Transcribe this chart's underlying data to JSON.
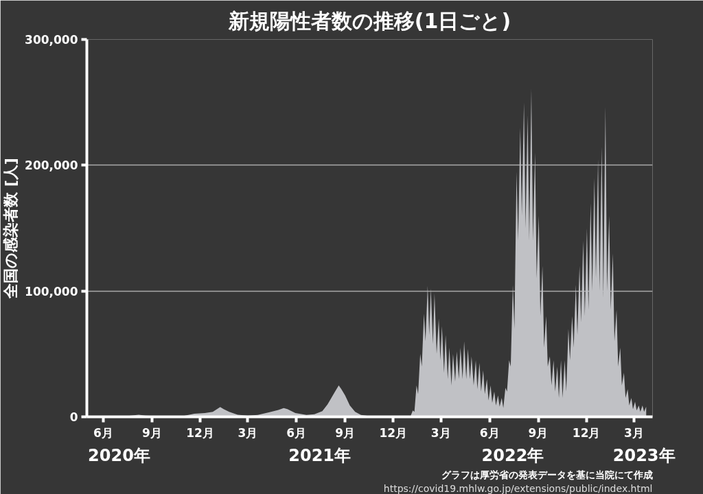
{
  "chart_data": {
    "type": "area",
    "title": "新規陽性者数の推移(1日ごと)",
    "ylabel": "全国の感染者数 [人]",
    "annotations": [
      "グラフは厚労省の発表データを基に当院にて作成",
      "https://covid19.mhlw.go.jp/extensions/public/index.html"
    ],
    "xlim": [
      "2020-05-01",
      "2023-04-05"
    ],
    "xticks": [
      {
        "value": "2020-06-01",
        "label": "6月"
      },
      {
        "value": "2020-09-01",
        "label": "9月"
      },
      {
        "value": "2020-12-01",
        "label": "12月"
      },
      {
        "value": "2021-03-01",
        "label": "3月"
      },
      {
        "value": "2021-06-01",
        "label": "6月"
      },
      {
        "value": "2021-09-01",
        "label": "9月"
      },
      {
        "value": "2021-12-01",
        "label": "12月"
      },
      {
        "value": "2022-03-01",
        "label": "3月"
      },
      {
        "value": "2022-06-01",
        "label": "6月"
      },
      {
        "value": "2022-09-01",
        "label": "9月"
      },
      {
        "value": "2022-12-01",
        "label": "12月"
      },
      {
        "value": "2023-03-01",
        "label": "3月"
      }
    ],
    "x2lim": [
      "2020-05-01",
      "2023-04-05"
    ],
    "x2ticks": [
      {
        "value": "2020-07-01",
        "label": "2020年"
      },
      {
        "value": "2021-07-15",
        "label": "2021年"
      },
      {
        "value": "2022-07-15",
        "label": "2022年"
      },
      {
        "value": "2023-03-20",
        "label": "2023年"
      }
    ],
    "ylim": [
      0,
      300000
    ],
    "yticks": [
      {
        "value": 0,
        "label": "0"
      },
      {
        "value": 100000,
        "label": "100,000"
      },
      {
        "value": 200000,
        "label": "200,000"
      },
      {
        "value": 300000,
        "label": "300,000"
      }
    ],
    "grid": "y",
    "series": [
      {
        "color": "#c0c1c5",
        "x": [
          "2020-05-05",
          "2020-06-01",
          "2020-07-01",
          "2020-07-20",
          "2020-08-07",
          "2020-08-20",
          "2020-09-15",
          "2020-10-15",
          "2020-11-01",
          "2020-11-20",
          "2020-12-10",
          "2020-12-25",
          "2021-01-08",
          "2021-01-15",
          "2021-01-25",
          "2021-02-10",
          "2021-03-01",
          "2021-03-20",
          "2021-04-10",
          "2021-04-28",
          "2021-05-08",
          "2021-05-15",
          "2021-05-30",
          "2021-06-20",
          "2021-07-05",
          "2021-07-20",
          "2021-07-30",
          "2021-08-06",
          "2021-08-13",
          "2021-08-20",
          "2021-08-25",
          "2021-09-01",
          "2021-09-10",
          "2021-09-20",
          "2021-10-01",
          "2021-10-20",
          "2021-11-15",
          "2021-12-15",
          "2021-12-28",
          "2022-01-03",
          "2022-01-07",
          "2022-01-10",
          "2022-01-14",
          "2022-01-17",
          "2022-01-21",
          "2022-01-24",
          "2022-01-28",
          "2022-01-31",
          "2022-02-04",
          "2022-02-07",
          "2022-02-10",
          "2022-02-14",
          "2022-02-17",
          "2022-02-21",
          "2022-02-25",
          "2022-02-28",
          "2022-03-03",
          "2022-03-07",
          "2022-03-10",
          "2022-03-14",
          "2022-03-17",
          "2022-03-21",
          "2022-03-24",
          "2022-03-28",
          "2022-03-31",
          "2022-04-04",
          "2022-04-07",
          "2022-04-11",
          "2022-04-14",
          "2022-04-18",
          "2022-04-21",
          "2022-04-25",
          "2022-04-28",
          "2022-05-02",
          "2022-05-06",
          "2022-05-09",
          "2022-05-13",
          "2022-05-16",
          "2022-05-20",
          "2022-05-23",
          "2022-05-27",
          "2022-05-30",
          "2022-06-03",
          "2022-06-06",
          "2022-06-10",
          "2022-06-13",
          "2022-06-17",
          "2022-06-20",
          "2022-06-24",
          "2022-06-27",
          "2022-07-01",
          "2022-07-04",
          "2022-07-08",
          "2022-07-11",
          "2022-07-15",
          "2022-07-18",
          "2022-07-22",
          "2022-07-25",
          "2022-07-29",
          "2022-08-01",
          "2022-08-05",
          "2022-08-08",
          "2022-08-12",
          "2022-08-15",
          "2022-08-19",
          "2022-08-22",
          "2022-08-26",
          "2022-08-29",
          "2022-09-02",
          "2022-09-05",
          "2022-09-09",
          "2022-09-12",
          "2022-09-16",
          "2022-09-19",
          "2022-09-23",
          "2022-09-26",
          "2022-09-30",
          "2022-10-03",
          "2022-10-07",
          "2022-10-10",
          "2022-10-14",
          "2022-10-17",
          "2022-10-21",
          "2022-10-24",
          "2022-10-28",
          "2022-10-31",
          "2022-11-04",
          "2022-11-07",
          "2022-11-11",
          "2022-11-14",
          "2022-11-18",
          "2022-11-21",
          "2022-11-25",
          "2022-11-28",
          "2022-12-02",
          "2022-12-05",
          "2022-12-09",
          "2022-12-12",
          "2022-12-16",
          "2022-12-19",
          "2022-12-23",
          "2022-12-26",
          "2022-12-30",
          "2023-01-02",
          "2023-01-06",
          "2023-01-09",
          "2023-01-13",
          "2023-01-16",
          "2023-01-20",
          "2023-01-23",
          "2023-01-27",
          "2023-01-30",
          "2023-02-03",
          "2023-02-06",
          "2023-02-10",
          "2023-02-13",
          "2023-02-17",
          "2023-02-20",
          "2023-02-24",
          "2023-02-27",
          "2023-03-03",
          "2023-03-06",
          "2023-03-10",
          "2023-03-13",
          "2023-03-17",
          "2023-03-20",
          "2023-03-24"
        ],
        "values": [
          100,
          0,
          300,
          800,
          1600,
          1000,
          500,
          600,
          800,
          2400,
          3000,
          4000,
          7800,
          6000,
          4000,
          1700,
          1000,
          1500,
          3500,
          5500,
          7000,
          6200,
          3000,
          1500,
          2000,
          4500,
          10000,
          15000,
          20000,
          25000,
          22000,
          17000,
          9000,
          4000,
          1500,
          400,
          200,
          200,
          500,
          800,
          5000,
          4000,
          25000,
          18000,
          50000,
          40000,
          82000,
          60000,
          104000,
          65000,
          102000,
          58000,
          98000,
          50000,
          78000,
          45000,
          72000,
          35000,
          65000,
          30000,
          55000,
          25000,
          50000,
          28000,
          52000,
          30000,
          55000,
          30000,
          60000,
          30000,
          54000,
          30000,
          48000,
          25000,
          45000,
          22000,
          43000,
          20000,
          37000,
          18000,
          30000,
          13000,
          25000,
          11000,
          20000,
          9000,
          17000,
          8000,
          15000,
          7000,
          23000,
          20000,
          45000,
          40000,
          105000,
          70000,
          195000,
          140000,
          230000,
          160000,
          250000,
          150000,
          240000,
          140000,
          261000,
          140000,
          210000,
          110000,
          160000,
          80000,
          120000,
          55000,
          80000,
          40000,
          48000,
          25000,
          45000,
          20000,
          40000,
          15000,
          45000,
          15000,
          45000,
          20000,
          70000,
          45000,
          80000,
          55000,
          105000,
          65000,
          120000,
          75000,
          140000,
          80000,
          150000,
          85000,
          170000,
          100000,
          190000,
          110000,
          205000,
          100000,
          215000,
          95000,
          247000,
          100000,
          160000,
          85000,
          130000,
          60000,
          85000,
          40000,
          55000,
          25000,
          35000,
          15000,
          22000,
          9000,
          15000,
          6000,
          12000,
          5000,
          9000,
          4000,
          9000,
          4000,
          8000
        ]
      }
    ]
  }
}
